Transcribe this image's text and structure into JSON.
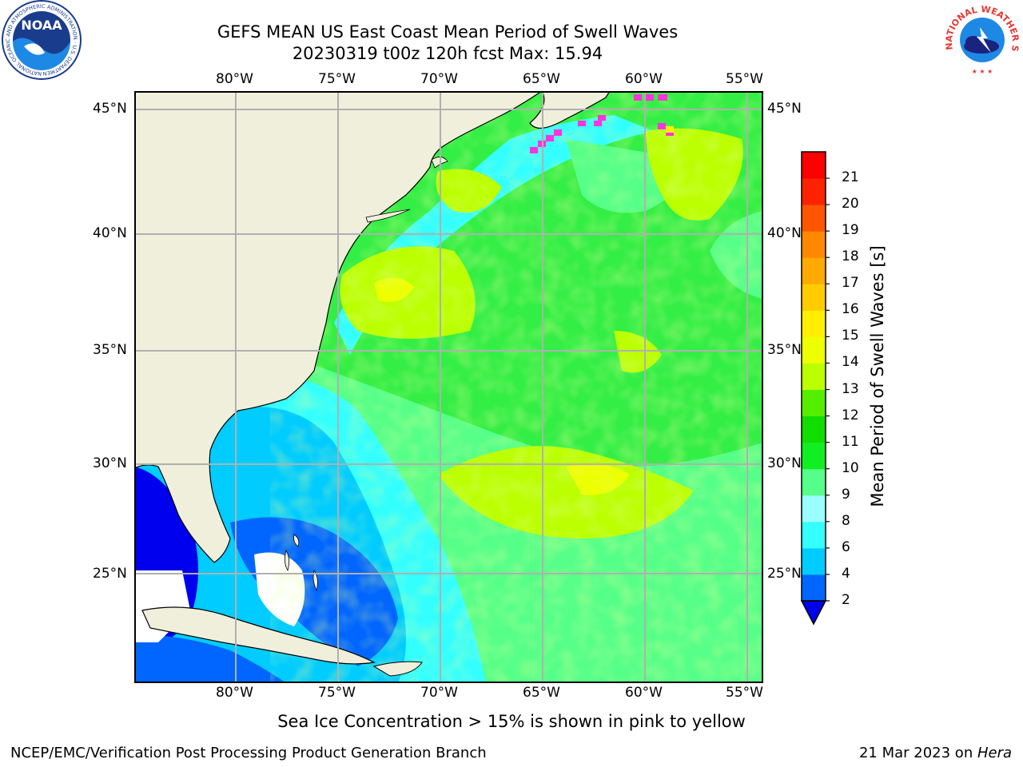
{
  "header": {
    "title_line1": "GEFS MEAN US East Coast Mean Period of Swell Waves",
    "title_line2": "20230319 t00z 120h fcst   Max: 15.94"
  },
  "logos": {
    "noaa": {
      "text": "NOAA",
      "ring_text": "NATIONAL OCEANIC AND ATMOSPHERIC ADMINISTRATION · U.S. DEPARTMENT OF COMMERCE"
    },
    "nws": {
      "ring_text": "NATIONAL WEATHER SERVICE"
    }
  },
  "map": {
    "lon_labels": [
      "80°W",
      "75°W",
      "70°W",
      "65°W",
      "60°W",
      "55°W"
    ],
    "lat_labels": [
      "45°N",
      "40°N",
      "35°N",
      "30°N",
      "25°N"
    ],
    "lon_range": [
      -85,
      -54.5
    ],
    "lat_range": [
      20.5,
      46
    ]
  },
  "colorbar": {
    "label": "Mean Period of Swell Waves [s]",
    "ticks": [
      "2",
      "4",
      "6",
      "8",
      "9",
      "10",
      "11",
      "12",
      "13",
      "14",
      "15",
      "16",
      "17",
      "18",
      "19",
      "20",
      "21"
    ],
    "colors": [
      "#0066ff",
      "#00ccff",
      "#33ffff",
      "#99ffff",
      "#55ff88",
      "#11ee22",
      "#11dd00",
      "#55ee00",
      "#bbff00",
      "#eeff00",
      "#ffee00",
      "#ffcc00",
      "#ffaa00",
      "#ff8800",
      "#ff5500",
      "#ff2200",
      "#ff0000"
    ],
    "under_color": "#0000ee"
  },
  "footer": {
    "ice_note": "Sea Ice Concentration > 15% is shown in pink to yellow",
    "credit": "NCEP/EMC/Verification Post Processing Product Generation Branch",
    "date": "21 Mar 2023 on ",
    "machine": "Hera"
  }
}
